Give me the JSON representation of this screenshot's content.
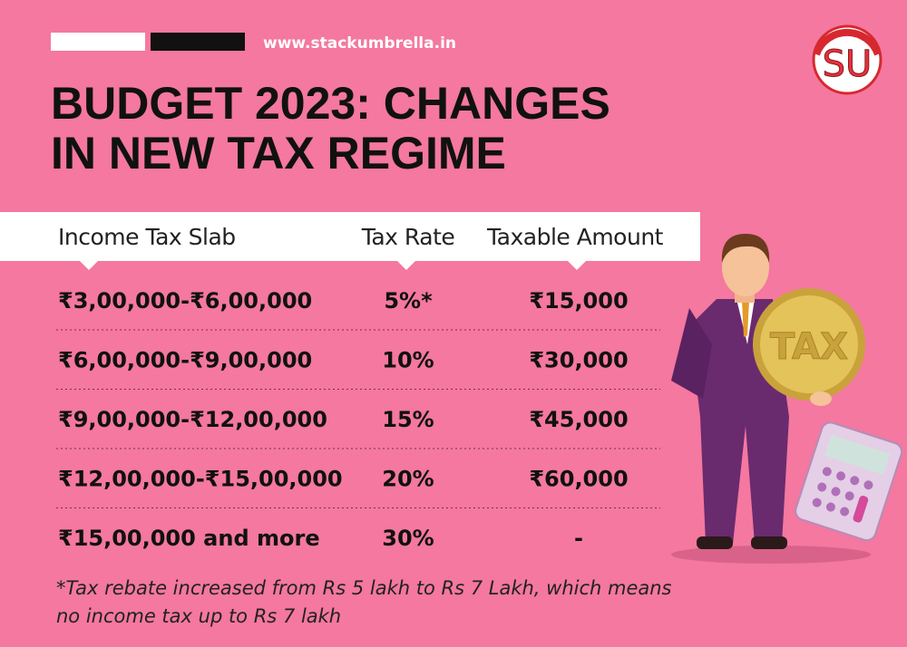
{
  "header": {
    "website": "www.stackumbrella.in",
    "logo": "SU",
    "title": [
      "BUDGET 2023: CHANGES",
      "IN NEW TAX REGIME"
    ]
  },
  "table": {
    "columns": [
      "Income Tax Slab",
      "Tax Rate",
      "Taxable Amount"
    ],
    "rows": [
      [
        "₹3,00,000-₹6,00,000",
        "5%*",
        "₹15,000"
      ],
      [
        "₹6,00,000-₹9,00,000",
        "10%",
        "₹30,000"
      ],
      [
        "₹9,00,000-₹12,00,000",
        "15%",
        "₹45,000"
      ],
      [
        "₹12,00,000-₹15,00,000",
        "20%",
        "₹60,000"
      ],
      [
        "₹15,00,000 and more",
        "30%",
        "-"
      ]
    ]
  },
  "illustration": {
    "coin_label": "TAX"
  },
  "footnote": [
    "*Tax rebate increased from Rs 5 lakh to Rs 7 Lakh, which means",
    "no income tax up to Rs 7 lakh"
  ]
}
